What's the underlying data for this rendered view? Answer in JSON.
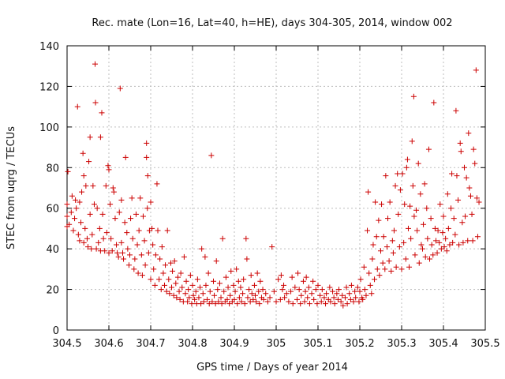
{
  "chart_data": {
    "type": "scatter",
    "title": "Rec. mate (Lon=16, Lat=40, h=HE), days 304-305, 2014, window 002",
    "xlabel": "GPS time / Days of year 2014",
    "ylabel": "STEC from uqrg / TECUs",
    "xlim": [
      304.5,
      305.5
    ],
    "ylim": [
      0,
      140
    ],
    "xticks": [
      "304.5",
      "304.6",
      "304.7",
      "304.8",
      "304.9",
      "305",
      "305.1",
      "305.2",
      "305.3",
      "305.4",
      "305.5"
    ],
    "yticks": [
      "0",
      "20",
      "40",
      "60",
      "80",
      "100",
      "120",
      "140"
    ],
    "grid": true,
    "marker": "+",
    "color": "#cc0000",
    "points": [
      [
        304.5,
        51
      ],
      [
        304.5,
        56
      ],
      [
        304.5,
        62
      ],
      [
        304.502,
        78
      ],
      [
        304.505,
        52
      ],
      [
        304.51,
        58
      ],
      [
        304.512,
        66
      ],
      [
        304.515,
        49
      ],
      [
        304.518,
        55
      ],
      [
        304.52,
        64
      ],
      [
        304.522,
        60
      ],
      [
        304.525,
        110
      ],
      [
        304.527,
        47
      ],
      [
        304.53,
        44
      ],
      [
        304.53,
        63
      ],
      [
        304.533,
        53
      ],
      [
        304.535,
        68
      ],
      [
        304.538,
        87
      ],
      [
        304.54,
        43
      ],
      [
        304.54,
        76
      ],
      [
        304.543,
        50
      ],
      [
        304.545,
        71
      ],
      [
        304.548,
        45
      ],
      [
        304.55,
        41
      ],
      [
        304.552,
        83
      ],
      [
        304.555,
        95
      ],
      [
        304.555,
        57
      ],
      [
        304.558,
        40
      ],
      [
        304.56,
        47
      ],
      [
        304.562,
        71
      ],
      [
        304.565,
        62
      ],
      [
        304.567,
        131
      ],
      [
        304.568,
        112
      ],
      [
        304.57,
        40
      ],
      [
        304.572,
        60
      ],
      [
        304.575,
        43
      ],
      [
        304.578,
        50
      ],
      [
        304.58,
        95
      ],
      [
        304.58,
        39
      ],
      [
        304.583,
        107
      ],
      [
        304.585,
        57
      ],
      [
        304.587,
        45
      ],
      [
        304.59,
        39
      ],
      [
        304.593,
        71
      ],
      [
        304.595,
        48
      ],
      [
        304.598,
        81
      ],
      [
        304.6,
        79
      ],
      [
        304.6,
        38
      ],
      [
        304.603,
        62
      ],
      [
        304.605,
        45
      ],
      [
        304.608,
        39
      ],
      [
        304.61,
        70
      ],
      [
        304.612,
        68
      ],
      [
        304.615,
        55
      ],
      [
        304.618,
        42
      ],
      [
        304.62,
        38
      ],
      [
        304.623,
        36
      ],
      [
        304.625,
        58
      ],
      [
        304.627,
        119
      ],
      [
        304.63,
        64
      ],
      [
        304.63,
        43
      ],
      [
        304.633,
        38
      ],
      [
        304.635,
        35
      ],
      [
        304.638,
        53
      ],
      [
        304.64,
        85
      ],
      [
        304.643,
        48
      ],
      [
        304.645,
        40
      ],
      [
        304.648,
        32
      ],
      [
        304.65,
        37
      ],
      [
        304.652,
        55
      ],
      [
        304.655,
        65
      ],
      [
        304.657,
        45
      ],
      [
        304.66,
        30
      ],
      [
        304.662,
        35
      ],
      [
        304.665,
        57
      ],
      [
        304.668,
        42
      ],
      [
        304.67,
        28
      ],
      [
        304.672,
        49
      ],
      [
        304.675,
        65
      ],
      [
        304.678,
        37
      ],
      [
        304.68,
        27
      ],
      [
        304.682,
        56
      ],
      [
        304.685,
        44
      ],
      [
        304.687,
        32
      ],
      [
        304.69,
        92
      ],
      [
        304.69,
        85
      ],
      [
        304.692,
        60
      ],
      [
        304.693,
        76
      ],
      [
        304.695,
        38
      ],
      [
        304.697,
        49
      ],
      [
        304.7,
        25
      ],
      [
        304.7,
        63
      ],
      [
        304.703,
        50
      ],
      [
        304.705,
        42
      ],
      [
        304.707,
        30
      ],
      [
        304.71,
        22
      ],
      [
        304.712,
        37
      ],
      [
        304.715,
        72
      ],
      [
        304.717,
        49
      ],
      [
        304.72,
        25
      ],
      [
        304.722,
        35
      ],
      [
        304.725,
        20
      ],
      [
        304.727,
        41
      ],
      [
        304.73,
        28
      ],
      [
        304.733,
        22
      ],
      [
        304.735,
        32
      ],
      [
        304.738,
        19
      ],
      [
        304.74,
        49
      ],
      [
        304.743,
        25
      ],
      [
        304.745,
        18
      ],
      [
        304.748,
        33
      ],
      [
        304.75,
        21
      ],
      [
        304.752,
        29
      ],
      [
        304.755,
        17
      ],
      [
        304.757,
        34
      ],
      [
        304.76,
        23
      ],
      [
        304.762,
        16
      ],
      [
        304.765,
        26
      ],
      [
        304.768,
        19
      ],
      [
        304.77,
        15
      ],
      [
        304.772,
        28
      ],
      [
        304.775,
        21
      ],
      [
        304.778,
        14
      ],
      [
        304.78,
        36
      ],
      [
        304.783,
        18
      ],
      [
        304.785,
        24
      ],
      [
        304.788,
        14
      ],
      [
        304.79,
        20
      ],
      [
        304.792,
        16
      ],
      [
        304.795,
        27
      ],
      [
        304.798,
        13
      ],
      [
        304.8,
        22
      ],
      [
        304.802,
        17
      ],
      [
        304.805,
        15
      ],
      [
        304.808,
        19
      ],
      [
        304.81,
        13
      ],
      [
        304.812,
        25
      ],
      [
        304.815,
        16
      ],
      [
        304.818,
        21
      ],
      [
        304.82,
        13
      ],
      [
        304.822,
        40
      ],
      [
        304.825,
        18
      ],
      [
        304.827,
        14
      ],
      [
        304.83,
        36
      ],
      [
        304.832,
        22
      ],
      [
        304.835,
        15
      ],
      [
        304.838,
        28
      ],
      [
        304.84,
        13
      ],
      [
        304.842,
        19
      ],
      [
        304.845,
        86
      ],
      [
        304.847,
        14
      ],
      [
        304.85,
        24
      ],
      [
        304.852,
        17
      ],
      [
        304.855,
        13
      ],
      [
        304.857,
        34
      ],
      [
        304.86,
        20
      ],
      [
        304.862,
        14
      ],
      [
        304.865,
        23
      ],
      [
        304.868,
        16
      ],
      [
        304.87,
        13
      ],
      [
        304.872,
        45
      ],
      [
        304.875,
        19
      ],
      [
        304.878,
        14
      ],
      [
        304.88,
        26
      ],
      [
        304.883,
        15
      ],
      [
        304.885,
        21
      ],
      [
        304.888,
        13
      ],
      [
        304.89,
        17
      ],
      [
        304.892,
        29
      ],
      [
        304.895,
        14
      ],
      [
        304.898,
        22
      ],
      [
        304.9,
        15
      ],
      [
        304.902,
        19
      ],
      [
        304.905,
        30
      ],
      [
        304.907,
        13
      ],
      [
        304.91,
        24
      ],
      [
        304.912,
        16
      ],
      [
        304.915,
        21
      ],
      [
        304.917,
        14
      ],
      [
        304.92,
        18
      ],
      [
        304.922,
        25
      ],
      [
        304.925,
        13
      ],
      [
        304.928,
        45
      ],
      [
        304.93,
        35
      ],
      [
        304.932,
        16
      ],
      [
        304.935,
        20
      ],
      [
        304.938,
        14
      ],
      [
        304.94,
        27
      ],
      [
        304.942,
        18
      ],
      [
        304.945,
        15
      ],
      [
        304.948,
        22
      ],
      [
        304.95,
        17
      ],
      [
        304.952,
        14
      ],
      [
        304.955,
        28
      ],
      [
        304.958,
        19
      ],
      [
        304.96,
        13
      ],
      [
        304.962,
        24
      ],
      [
        304.965,
        16
      ],
      [
        304.968,
        20
      ],
      [
        304.97,
        15
      ],
      [
        304.975,
        18
      ],
      [
        304.98,
        14
      ],
      [
        304.985,
        16
      ],
      [
        304.99,
        41
      ],
      [
        304.995,
        19
      ],
      [
        305.0,
        14
      ],
      [
        305.005,
        25
      ],
      [
        305.01,
        15
      ],
      [
        305.012,
        27
      ],
      [
        305.015,
        20
      ],
      [
        305.018,
        22
      ],
      [
        305.02,
        16
      ],
      [
        305.025,
        18
      ],
      [
        305.03,
        14
      ],
      [
        305.035,
        19
      ],
      [
        305.038,
        26
      ],
      [
        305.04,
        13
      ],
      [
        305.045,
        21
      ],
      [
        305.05,
        15
      ],
      [
        305.052,
        28
      ],
      [
        305.055,
        20
      ],
      [
        305.058,
        13
      ],
      [
        305.06,
        17
      ],
      [
        305.065,
        24
      ],
      [
        305.068,
        14
      ],
      [
        305.07,
        19
      ],
      [
        305.072,
        26
      ],
      [
        305.075,
        16
      ],
      [
        305.078,
        21
      ],
      [
        305.08,
        13
      ],
      [
        305.085,
        18
      ],
      [
        305.088,
        24
      ],
      [
        305.09,
        15
      ],
      [
        305.095,
        20
      ],
      [
        305.098,
        13
      ],
      [
        305.1,
        22
      ],
      [
        305.105,
        17
      ],
      [
        305.108,
        14
      ],
      [
        305.11,
        20
      ],
      [
        305.115,
        16
      ],
      [
        305.118,
        13
      ],
      [
        305.12,
        18
      ],
      [
        305.125,
        15
      ],
      [
        305.128,
        21
      ],
      [
        305.13,
        14
      ],
      [
        305.135,
        19
      ],
      [
        305.138,
        16
      ],
      [
        305.14,
        13
      ],
      [
        305.145,
        18
      ],
      [
        305.148,
        15
      ],
      [
        305.15,
        20
      ],
      [
        305.155,
        14
      ],
      [
        305.158,
        17
      ],
      [
        305.16,
        12
      ],
      [
        305.165,
        16
      ],
      [
        305.168,
        21
      ],
      [
        305.17,
        13
      ],
      [
        305.175,
        18
      ],
      [
        305.178,
        15
      ],
      [
        305.18,
        22
      ],
      [
        305.185,
        14
      ],
      [
        305.188,
        19
      ],
      [
        305.19,
        16
      ],
      [
        305.195,
        21
      ],
      [
        305.198,
        14
      ],
      [
        305.2,
        19
      ],
      [
        305.202,
        25
      ],
      [
        305.205,
        16
      ],
      [
        305.207,
        15
      ],
      [
        305.21,
        31
      ],
      [
        305.212,
        20
      ],
      [
        305.215,
        17
      ],
      [
        305.218,
        49
      ],
      [
        305.22,
        68
      ],
      [
        305.222,
        28
      ],
      [
        305.225,
        22
      ],
      [
        305.228,
        18
      ],
      [
        305.23,
        35
      ],
      [
        305.232,
        42
      ],
      [
        305.235,
        25
      ],
      [
        305.237,
        63
      ],
      [
        305.24,
        46
      ],
      [
        305.242,
        30
      ],
      [
        305.245,
        54
      ],
      [
        305.247,
        27
      ],
      [
        305.25,
        39
      ],
      [
        305.252,
        62
      ],
      [
        305.255,
        33
      ],
      [
        305.257,
        46
      ],
      [
        305.26,
        30
      ],
      [
        305.262,
        76
      ],
      [
        305.265,
        41
      ],
      [
        305.267,
        55
      ],
      [
        305.27,
        34
      ],
      [
        305.272,
        63
      ],
      [
        305.275,
        29
      ],
      [
        305.278,
        44
      ],
      [
        305.28,
        38
      ],
      [
        305.282,
        49
      ],
      [
        305.285,
        71
      ],
      [
        305.287,
        31
      ],
      [
        305.29,
        77
      ],
      [
        305.292,
        57
      ],
      [
        305.295,
        41
      ],
      [
        305.297,
        69
      ],
      [
        305.3,
        30
      ],
      [
        305.302,
        77
      ],
      [
        305.305,
        43
      ],
      [
        305.307,
        62
      ],
      [
        305.31,
        35
      ],
      [
        305.312,
        80
      ],
      [
        305.314,
        84
      ],
      [
        305.316,
        50
      ],
      [
        305.318,
        31
      ],
      [
        305.32,
        61
      ],
      [
        305.322,
        45
      ],
      [
        305.325,
        93
      ],
      [
        305.327,
        71
      ],
      [
        305.329,
        115
      ],
      [
        305.33,
        56
      ],
      [
        305.332,
        37
      ],
      [
        305.335,
        59
      ],
      [
        305.337,
        49
      ],
      [
        305.34,
        82
      ],
      [
        305.342,
        33
      ],
      [
        305.345,
        67
      ],
      [
        305.347,
        42
      ],
      [
        305.35,
        40
      ],
      [
        305.352,
        52
      ],
      [
        305.355,
        72
      ],
      [
        305.357,
        36
      ],
      [
        305.36,
        60
      ],
      [
        305.362,
        45
      ],
      [
        305.365,
        89
      ],
      [
        305.367,
        35
      ],
      [
        305.37,
        55
      ],
      [
        305.372,
        42
      ],
      [
        305.375,
        37
      ],
      [
        305.377,
        112
      ],
      [
        305.38,
        50
      ],
      [
        305.382,
        44
      ],
      [
        305.385,
        38
      ],
      [
        305.387,
        49
      ],
      [
        305.39,
        43
      ],
      [
        305.392,
        62
      ],
      [
        305.395,
        40
      ],
      [
        305.398,
        48
      ],
      [
        305.4,
        56
      ],
      [
        305.402,
        41
      ],
      [
        305.405,
        45
      ],
      [
        305.408,
        39
      ],
      [
        305.41,
        67
      ],
      [
        305.412,
        50
      ],
      [
        305.415,
        42
      ],
      [
        305.418,
        60
      ],
      [
        305.42,
        77
      ],
      [
        305.422,
        43
      ],
      [
        305.425,
        55
      ],
      [
        305.428,
        47
      ],
      [
        305.43,
        108
      ],
      [
        305.432,
        76
      ],
      [
        305.435,
        64
      ],
      [
        305.437,
        42
      ],
      [
        305.44,
        92
      ],
      [
        305.442,
        88
      ],
      [
        305.445,
        53
      ],
      [
        305.447,
        43
      ],
      [
        305.45,
        80
      ],
      [
        305.452,
        56
      ],
      [
        305.455,
        75
      ],
      [
        305.458,
        44
      ],
      [
        305.46,
        97
      ],
      [
        305.462,
        70
      ],
      [
        305.465,
        66
      ],
      [
        305.468,
        57
      ],
      [
        305.47,
        44
      ],
      [
        305.472,
        89
      ],
      [
        305.475,
        82
      ],
      [
        305.478,
        128
      ],
      [
        305.48,
        65
      ],
      [
        305.482,
        46
      ],
      [
        305.485,
        63
      ]
    ]
  }
}
